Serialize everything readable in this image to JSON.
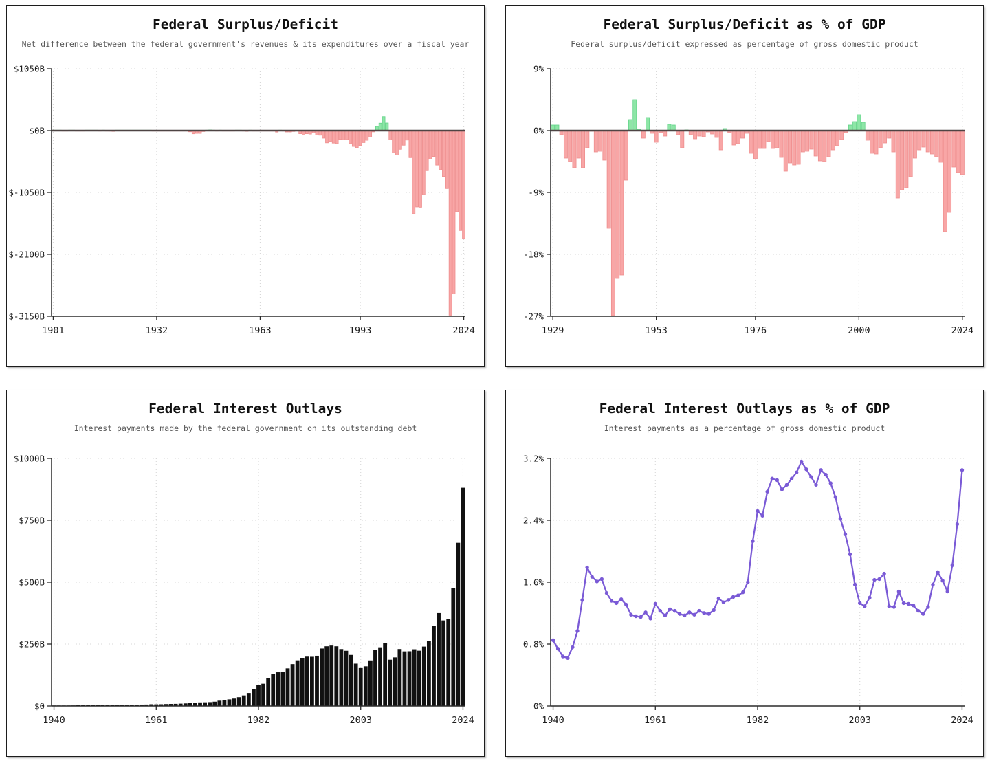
{
  "page": {
    "background": "#ffffff"
  },
  "chart_data": [
    {
      "type": "bar",
      "title": "Federal Surplus/Deficit",
      "subtitle": "Net difference between the federal government's revenues & its expenditures over a fiscal year",
      "unit": "billions of dollars",
      "years": {
        "start": 1901,
        "end": 2024
      },
      "values": [
        0.06,
        0.08,
        0.04,
        -0.04,
        -0.02,
        0.02,
        0.09,
        -0.06,
        -0.09,
        -0.02,
        0.01,
        0,
        0,
        0,
        -0.06,
        0.05,
        -0.85,
        -9.03,
        -13.36,
        0.29,
        0.51,
        0.74,
        0.71,
        0.96,
        0.72,
        0.87,
        1.16,
        0.94,
        0.73,
        0.74,
        -0.46,
        -2.74,
        -2.6,
        -3.59,
        -2.8,
        -4.3,
        -2.19,
        -0.09,
        -2.85,
        -2.92,
        -4.94,
        -20.5,
        -54.6,
        -47.6,
        -47.6,
        -15.9,
        4.0,
        11.8,
        0.6,
        -3.1,
        6.1,
        -1.5,
        -6.5,
        -1.2,
        -3.0,
        3.9,
        3.4,
        -2.8,
        -12.8,
        0.3,
        -3.3,
        -7.1,
        -4.8,
        -5.9,
        -1.4,
        -3.7,
        -8.6,
        -25.2,
        3.2,
        -2.8,
        -23.0,
        -23.4,
        -14.9,
        -6.1,
        -53.2,
        -73.7,
        -53.7,
        -59.2,
        -40.7,
        -73.8,
        -79.0,
        -128.0,
        -207.8,
        -185.4,
        -212.3,
        -221.2,
        -149.7,
        -155.2,
        -152.6,
        -221.0,
        -269.2,
        -290.3,
        -255.1,
        -203.2,
        -164.0,
        -107.4,
        -21.9,
        69.3,
        125.6,
        236.2,
        128.2,
        -157.8,
        -377.6,
        -412.7,
        -318.3,
        -248.2,
        -160.7,
        -458.6,
        -1412.7,
        -1294.4,
        -1299.6,
        -1087.0,
        -679.8,
        -484.8,
        -438.5,
        -584.7,
        -665.4,
        -779.0,
        -983.6,
        -3131.9,
        -2772.2,
        -1375.4,
        -1695.2,
        -1832.8
      ],
      "ylim": [
        -3150,
        1050
      ],
      "yticks": [
        1050,
        0,
        -1050,
        -2100,
        -3150
      ],
      "ylabels": [
        "$1050B",
        "$0B",
        "$-1050B",
        "$-2100B",
        "$-3150B"
      ],
      "xticks": [
        1901,
        1932,
        1963,
        1993,
        2024
      ],
      "grid": true,
      "colors": {
        "positive": "#8ee6a7",
        "positive_stroke": "#63d389",
        "negative": "#f8a6a6",
        "negative_stroke": "#ee8e8e",
        "zero_line": "#4e4444"
      }
    },
    {
      "type": "bar",
      "title": "Federal Surplus/Deficit as % of GDP",
      "subtitle": "Federal surplus/deficit expressed as percentage of gross domestic product",
      "unit": "percent of GDP",
      "years": {
        "start": 1929,
        "end": 2024
      },
      "values": [
        0.8,
        0.8,
        -0.6,
        -4.0,
        -4.5,
        -5.4,
        -4.0,
        -5.4,
        -2.5,
        -0.1,
        -3.1,
        -3.0,
        -4.3,
        -14.2,
        -26.9,
        -21.5,
        -21.0,
        -7.2,
        1.6,
        4.5,
        0.2,
        -1.1,
        1.9,
        -0.4,
        -1.7,
        -0.3,
        -0.8,
        0.9,
        0.8,
        -0.6,
        -2.5,
        0.1,
        -0.6,
        -1.2,
        -0.8,
        -0.9,
        -0.2,
        -0.5,
        -1.0,
        -2.8,
        0.3,
        -0.3,
        -2.1,
        -1.9,
        -1.1,
        -0.4,
        -3.3,
        -4.1,
        -2.6,
        -2.6,
        -1.6,
        -2.6,
        -2.5,
        -3.9,
        -5.9,
        -4.7,
        -5.0,
        -4.9,
        -3.1,
        -3.0,
        -2.7,
        -3.7,
        -4.4,
        -4.5,
        -3.8,
        -2.8,
        -2.2,
        -1.3,
        -0.3,
        0.8,
        1.3,
        2.3,
        1.2,
        -1.4,
        -3.3,
        -3.4,
        -2.5,
        -1.8,
        -1.1,
        -3.1,
        -9.8,
        -8.6,
        -8.3,
        -6.7,
        -4.0,
        -2.8,
        -2.4,
        -3.1,
        -3.4,
        -3.8,
        -4.6,
        -14.7,
        -11.9,
        -5.3,
        -6.1,
        -6.4
      ],
      "ylim": [
        -27,
        9
      ],
      "yticks": [
        9,
        0,
        -9,
        -18,
        -27
      ],
      "ylabels": [
        "9%",
        "0%",
        "-9%",
        "-18%",
        "-27%"
      ],
      "xticks": [
        1929,
        1953,
        1976,
        2000,
        2024
      ],
      "grid": true,
      "colors": {
        "positive": "#8ee6a7",
        "positive_stroke": "#63d389",
        "negative": "#f8a6a6",
        "negative_stroke": "#ee8e8e",
        "zero_line": "#4e4444"
      }
    },
    {
      "type": "bar",
      "title": "Federal Interest Outlays",
      "subtitle": "Interest payments made by the federal government on its outstanding debt",
      "unit": "billions of dollars",
      "years": {
        "start": 1940,
        "end": 2024
      },
      "values": [
        0.9,
        0.9,
        1.1,
        1.5,
        2.2,
        3.1,
        4.1,
        4.2,
        4.3,
        4.4,
        4.8,
        4.7,
        4.7,
        5.2,
        4.8,
        4.9,
        5.1,
        5.4,
        5.6,
        5.8,
        6.9,
        6.7,
        6.9,
        7.7,
        8.2,
        8.6,
        9.4,
        10.3,
        11.1,
        12.7,
        14.4,
        14.8,
        15.5,
        17.3,
        21.4,
        23.2,
        26.7,
        29.9,
        35.5,
        42.6,
        52.5,
        68.8,
        85.0,
        89.8,
        111.1,
        129.5,
        136.0,
        138.6,
        151.8,
        169.0,
        184.3,
        194.4,
        199.3,
        198.7,
        202.9,
        232.1,
        241.1,
        244.0,
        241.1,
        229.8,
        222.9,
        206.2,
        170.9,
        153.1,
        160.2,
        184.0,
        226.6,
        237.1,
        252.8,
        186.9,
        196.2,
        230.0,
        220.4,
        220.9,
        229.0,
        223.2,
        240.0,
        262.6,
        325.0,
        375.2,
        345.5,
        352.3,
        475.9,
        659.2,
        881.7
      ],
      "ylim": [
        0,
        1000
      ],
      "yticks": [
        1000,
        750,
        500,
        250,
        0
      ],
      "ylabels": [
        "$1000B",
        "$750B",
        "$500B",
        "$250B",
        "$0"
      ],
      "xticks": [
        1940,
        1961,
        1982,
        2003,
        2024
      ],
      "grid": true,
      "colors": {
        "bar": "#111111"
      }
    },
    {
      "type": "line",
      "title": "Federal Interest Outlays as % of GDP",
      "subtitle": "Interest payments as a percentage of gross domestic product",
      "unit": "percent of GDP",
      "years": {
        "start": 1940,
        "end": 2024
      },
      "values": [
        0.85,
        0.74,
        0.64,
        0.62,
        0.76,
        0.97,
        1.37,
        1.79,
        1.67,
        1.61,
        1.64,
        1.46,
        1.36,
        1.33,
        1.38,
        1.31,
        1.18,
        1.16,
        1.15,
        1.21,
        1.13,
        1.32,
        1.23,
        1.17,
        1.25,
        1.23,
        1.19,
        1.17,
        1.21,
        1.18,
        1.23,
        1.2,
        1.19,
        1.24,
        1.39,
        1.34,
        1.37,
        1.41,
        1.43,
        1.47,
        1.6,
        2.13,
        2.52,
        2.46,
        2.77,
        2.94,
        2.92,
        2.8,
        2.86,
        2.94,
        3.02,
        3.16,
        3.06,
        2.96,
        2.86,
        3.05,
        2.99,
        2.88,
        2.7,
        2.42,
        2.22,
        1.96,
        1.57,
        1.33,
        1.29,
        1.4,
        1.63,
        1.64,
        1.71,
        1.29,
        1.28,
        1.48,
        1.33,
        1.32,
        1.3,
        1.23,
        1.19,
        1.28,
        1.57,
        1.73,
        1.62,
        1.48,
        1.82,
        2.35,
        3.05
      ],
      "ylim": [
        0,
        3.2
      ],
      "yticks": [
        3.2,
        2.4,
        1.6,
        0.8,
        0
      ],
      "ylabels": [
        "3.2%",
        "2.4%",
        "1.6%",
        "0.8%",
        "0%"
      ],
      "xticks": [
        1940,
        1961,
        1982,
        2003,
        2024
      ],
      "grid": true,
      "colors": {
        "line": "#7a5ad6",
        "marker": "#7a5ad6"
      }
    }
  ]
}
